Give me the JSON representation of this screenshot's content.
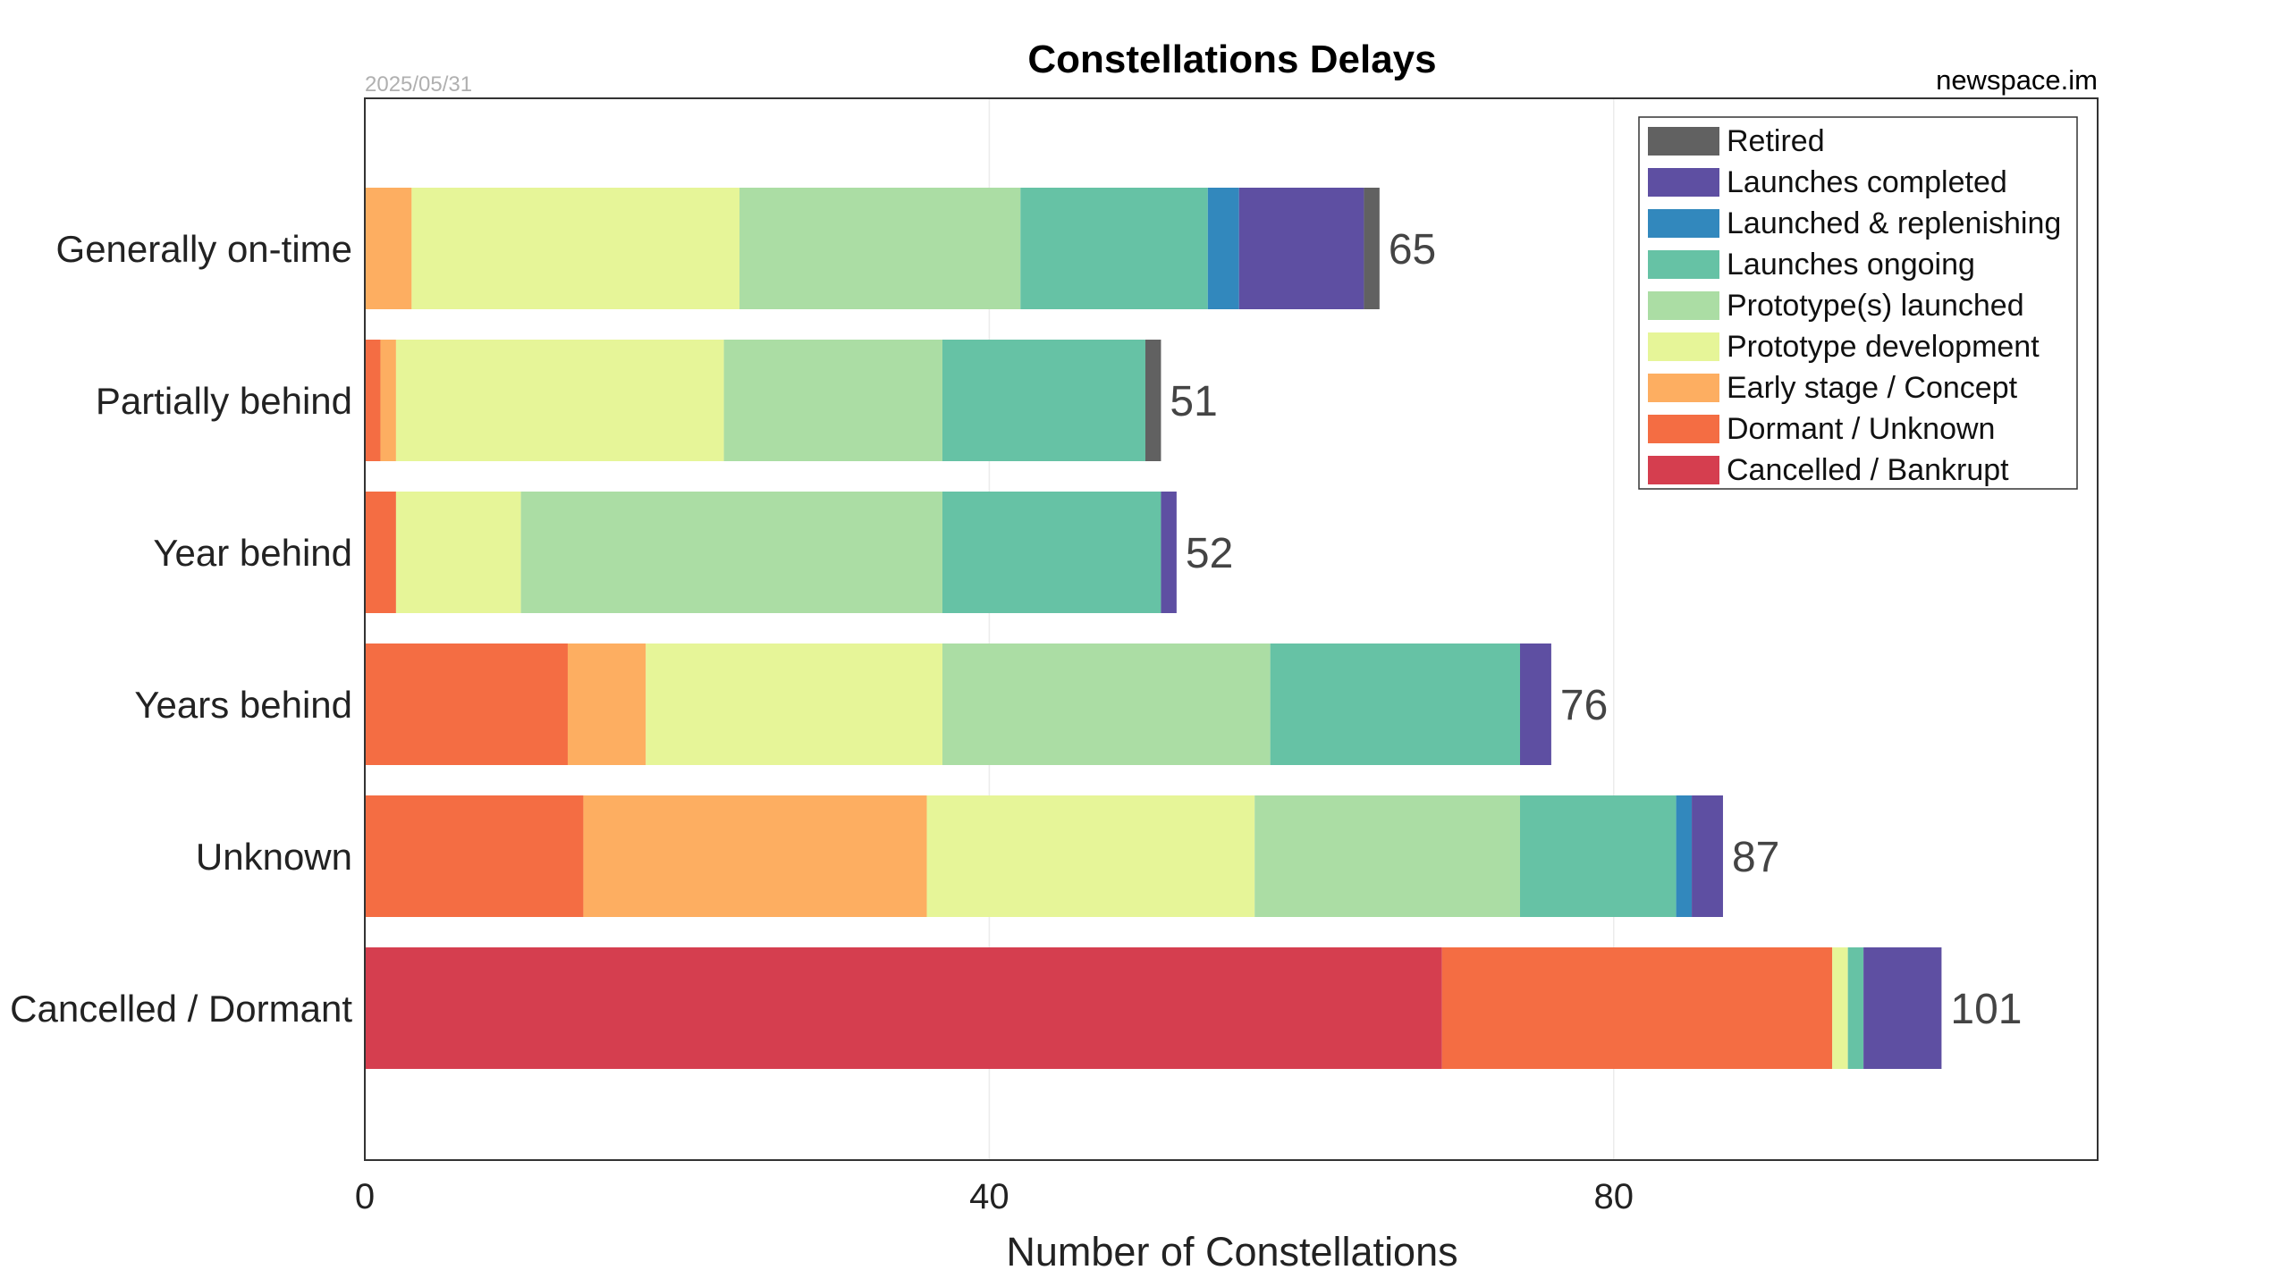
{
  "chart_data": {
    "type": "bar",
    "orientation": "horizontal",
    "stacked": true,
    "title": "Constellations Delays",
    "date": "2025/05/31",
    "source": "newspace.im",
    "xlabel": "Number of Constellations",
    "ylabel": "",
    "xlim": [
      0,
      111
    ],
    "xticks": [
      0,
      40,
      80
    ],
    "grid": true,
    "legend_position": "top-right",
    "categories": [
      "Generally on-time",
      "Partially behind",
      "Year behind",
      "Years behind",
      "Unknown",
      "Cancelled / Dormant"
    ],
    "totals": [
      65,
      51,
      52,
      76,
      87,
      101
    ],
    "series": [
      {
        "name": "Cancelled / Bankrupt",
        "color": "#d53e4f",
        "values": [
          0,
          0,
          0,
          0,
          0,
          69
        ]
      },
      {
        "name": "Dormant / Unknown",
        "color": "#f46d43",
        "values": [
          0,
          1,
          2,
          13,
          14,
          25
        ]
      },
      {
        "name": "Early stage / Concept",
        "color": "#fdae61",
        "values": [
          3,
          1,
          0,
          5,
          22,
          0
        ]
      },
      {
        "name": "Prototype development",
        "color": "#e6f598",
        "values": [
          21,
          21,
          8,
          19,
          21,
          1
        ]
      },
      {
        "name": "Prototype(s) launched",
        "color": "#abdda4",
        "values": [
          18,
          14,
          27,
          21,
          17,
          0
        ]
      },
      {
        "name": "Launches ongoing",
        "color": "#66c2a5",
        "values": [
          12,
          13,
          14,
          16,
          10,
          1
        ]
      },
      {
        "name": "Launched & replenishing",
        "color": "#3288bd",
        "values": [
          2,
          0,
          0,
          0,
          1,
          0
        ]
      },
      {
        "name": "Launches completed",
        "color": "#5e4fa2",
        "values": [
          8,
          0,
          1,
          2,
          2,
          5
        ]
      },
      {
        "name": "Retired",
        "color": "#616161",
        "values": [
          1,
          1,
          0,
          0,
          0,
          0
        ]
      }
    ]
  }
}
